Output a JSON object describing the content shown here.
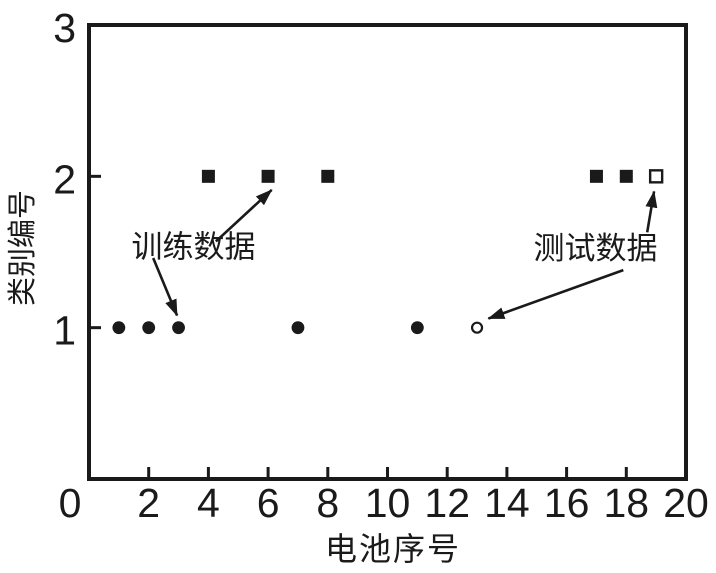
{
  "figure": {
    "background": "#ffffff",
    "ink": "#1a1a1a"
  },
  "chart_data": {
    "type": "scatter",
    "title": "",
    "xlabel": "电池序号",
    "ylabel": "类别编号",
    "xlim": [
      0,
      20
    ],
    "ylim": [
      0,
      3
    ],
    "grid": false,
    "legend_position": "none (arrow annotations used instead)",
    "x_ticks": {
      "label_values": [
        "0",
        "2",
        "4",
        "6",
        "8",
        "10",
        "12",
        "14",
        "16",
        "18",
        "20"
      ],
      "mark_values": [
        2,
        4,
        6,
        8,
        10,
        12,
        14,
        16,
        18
      ]
    },
    "y_ticks": {
      "label_values": [
        "1",
        "2",
        "3"
      ],
      "mark_values": [
        1,
        2
      ]
    },
    "series": [
      {
        "name": "训练数据 类别2",
        "marker": "filled-square",
        "color": "#1a1a1a",
        "points": [
          [
            4,
            2
          ],
          [
            6,
            2
          ],
          [
            8,
            2
          ],
          [
            17,
            2
          ],
          [
            18,
            2
          ]
        ]
      },
      {
        "name": "训练数据 类别1",
        "marker": "filled-circle",
        "color": "#1a1a1a",
        "points": [
          [
            1,
            1
          ],
          [
            2,
            1
          ],
          [
            3,
            1
          ],
          [
            7,
            1
          ],
          [
            11,
            1
          ]
        ]
      },
      {
        "name": "测试数据 类别2",
        "marker": "open-square",
        "color": "#1a1a1a",
        "points": [
          [
            19,
            2
          ]
        ]
      },
      {
        "name": "测试数据 类别1",
        "marker": "open-circle",
        "color": "#1a1a1a",
        "points": [
          [
            13,
            1
          ]
        ]
      }
    ],
    "annotations": [
      {
        "text": "训练数据",
        "x": 3.5,
        "y": 1.53,
        "arrows": [
          {
            "x1": 4.25,
            "y1": 1.57,
            "x2": 6.12,
            "y2": 1.91
          },
          {
            "x1": 2.15,
            "y1": 1.46,
            "x2": 2.95,
            "y2": 1.08
          }
        ]
      },
      {
        "text": "测试数据",
        "x": 16.97,
        "y": 1.52,
        "arrows": [
          {
            "x1": 18.7,
            "y1": 1.63,
            "x2": 18.93,
            "y2": 1.9
          },
          {
            "x1": 17.9,
            "y1": 1.38,
            "x2": 13.38,
            "y2": 1.06
          }
        ]
      }
    ],
    "layout_hints": {
      "origin_label_dx": -19
    }
  }
}
